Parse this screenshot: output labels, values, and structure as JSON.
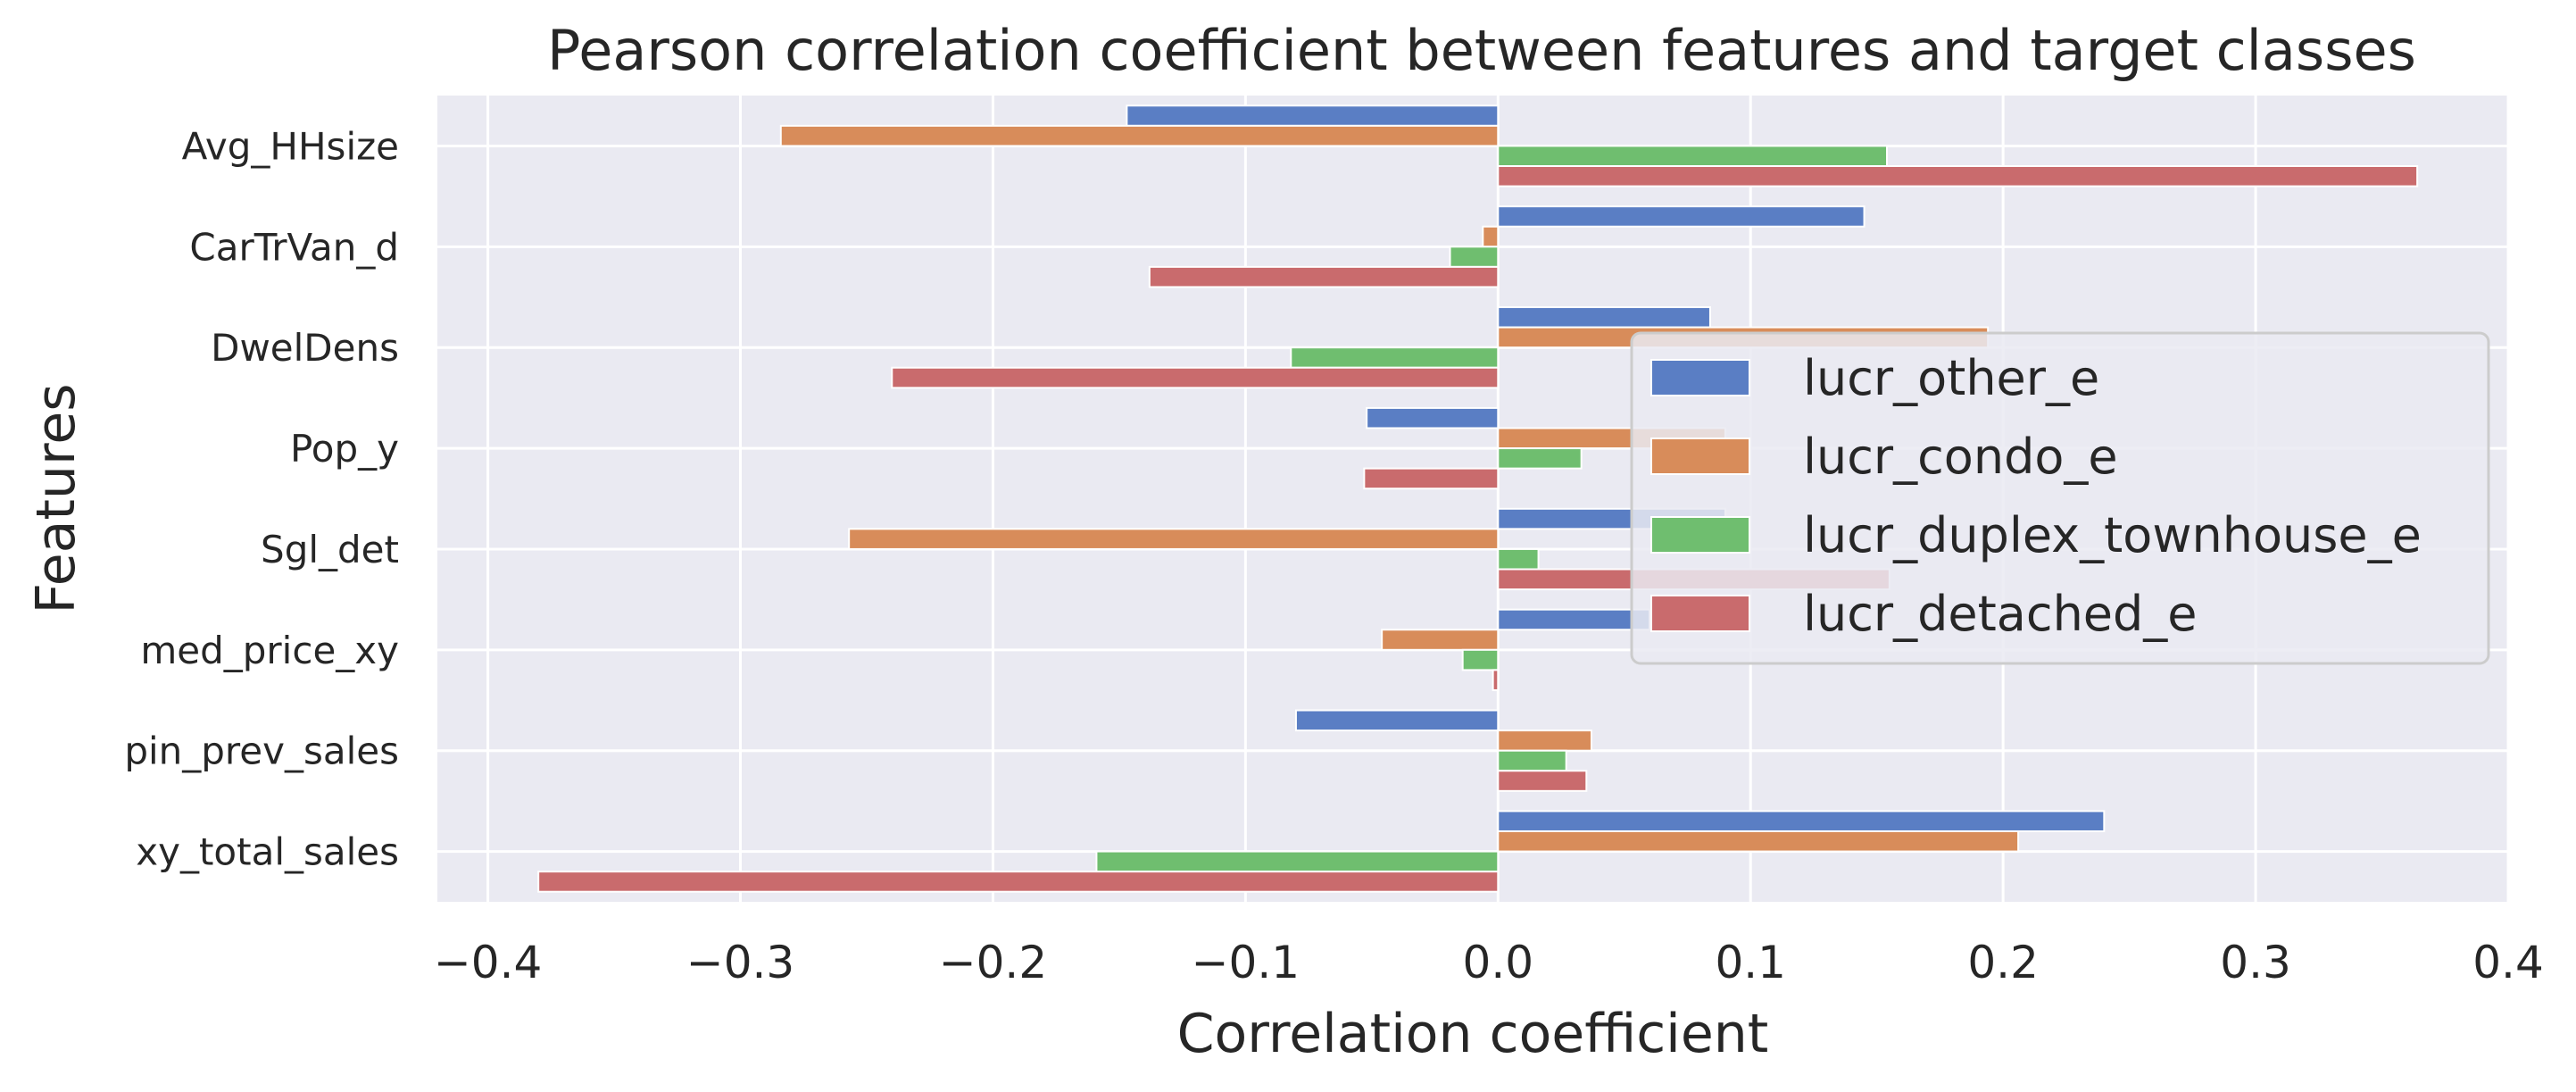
{
  "chart_data": {
    "type": "bar",
    "orientation": "horizontal",
    "title": "Pearson correlation coefficient between features and target classes",
    "xlabel": "Correlation coefficient",
    "ylabel": "Features",
    "xlim": [
      -0.42,
      0.4
    ],
    "xticks": [
      "−0.4",
      "−0.3",
      "−0.2",
      "−0.1",
      "0.0",
      "0.1",
      "0.2",
      "0.3",
      "0.4"
    ],
    "xtick_values": [
      -0.4,
      -0.3,
      -0.2,
      -0.1,
      0.0,
      0.1,
      0.2,
      0.3,
      0.4
    ],
    "grid": true,
    "legend_position": "center-right",
    "categories": [
      "Avg_HHsize",
      "CarTrVan_d",
      "DwelDens",
      "Pop_y",
      "Sgl_det",
      "med_price_xy",
      "pin_prev_sales",
      "xy_total_sales"
    ],
    "series": [
      {
        "name": "lucr_other_e",
        "color": "#5a7ec4",
        "values": [
          -0.147,
          0.145,
          0.084,
          -0.052,
          0.09,
          0.06,
          -0.08,
          0.24
        ]
      },
      {
        "name": "lucr_condo_e",
        "color": "#d88c5a",
        "values": [
          -0.284,
          -0.006,
          0.194,
          0.09,
          -0.257,
          -0.046,
          0.037,
          0.206
        ]
      },
      {
        "name": "lucr_duplex_townhouse_e",
        "color": "#6fbe6f",
        "values": [
          0.154,
          -0.019,
          -0.082,
          0.033,
          0.016,
          -0.014,
          0.027,
          -0.159
        ]
      },
      {
        "name": "lucr_detached_e",
        "color": "#c96b6d",
        "values": [
          0.364,
          -0.138,
          -0.24,
          -0.053,
          0.155,
          -0.002,
          0.035,
          -0.38
        ]
      }
    ]
  }
}
